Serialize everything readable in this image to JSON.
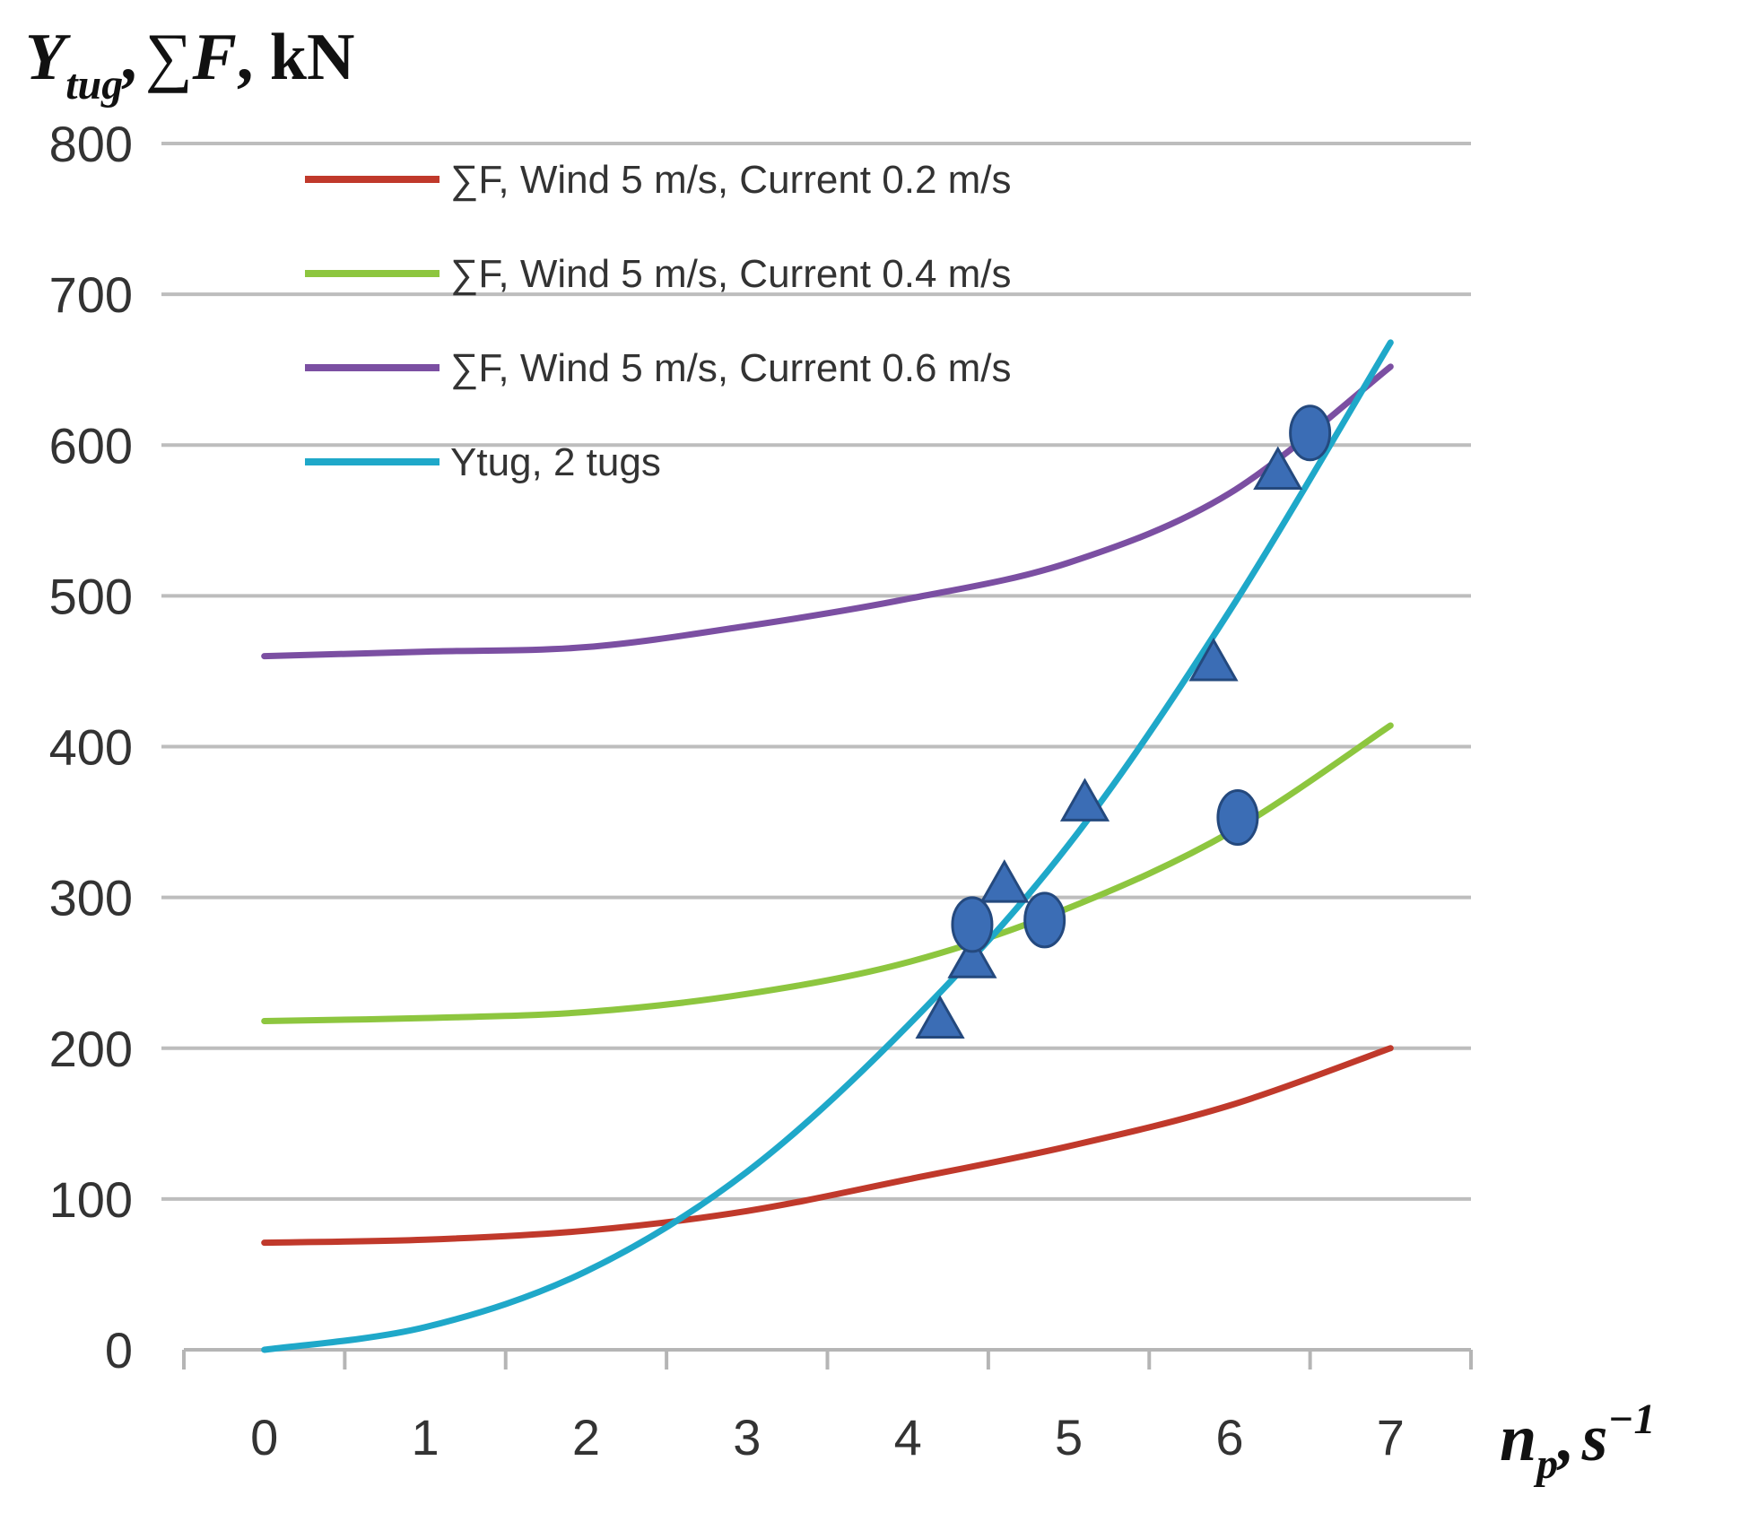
{
  "chart_data": {
    "type": "line",
    "ylabel": {
      "main": "Y",
      "sub": "tug",
      "sep": ",",
      "sum": "∑",
      "var": "F",
      "unit": ", kN"
    },
    "xlabel": {
      "main": "n",
      "sub": "p",
      "sep": ",",
      "var": "s",
      "sup": "−1"
    },
    "xlim": [
      -0.5,
      7.5
    ],
    "ylim": [
      0,
      800
    ],
    "x_ticks": [
      0,
      1,
      2,
      3,
      4,
      5,
      6,
      7
    ],
    "y_ticks": [
      0,
      100,
      200,
      300,
      400,
      500,
      600,
      700,
      800
    ],
    "grid": "horizontal",
    "legend_position": "top-left",
    "series": [
      {
        "name": "∑F, Wind 5 m/s, Current 0.2 m/s",
        "color": "#c0392b",
        "x": [
          0,
          1,
          2,
          3,
          4,
          5,
          6,
          7
        ],
        "y": [
          71,
          73,
          79,
          92,
          113,
          135,
          162,
          200
        ]
      },
      {
        "name": "∑F, Wind 5 m/s, Current 0.4 m/s",
        "color": "#8dc63f",
        "x": [
          0,
          1,
          2,
          3,
          4,
          5,
          6,
          7
        ],
        "y": [
          218,
          220,
          224,
          236,
          257,
          293,
          343,
          414
        ]
      },
      {
        "name": "∑F, Wind 5 m/s, Current 0.6 m/s",
        "color": "#7b4fa2",
        "x": [
          0,
          1,
          2,
          3,
          4,
          5,
          6,
          7
        ],
        "y": [
          460,
          463,
          466,
          480,
          498,
          522,
          568,
          652
        ]
      },
      {
        "name": "Ytug, 2 tugs",
        "color": "#1fa8c9",
        "x": [
          0,
          1,
          2,
          3,
          4,
          5,
          6,
          7
        ],
        "y": [
          0,
          15,
          52,
          118,
          215,
          335,
          490,
          668
        ]
      }
    ],
    "markers": {
      "color": "#3b6db5",
      "triangles": [
        {
          "x": 4.2,
          "y": 218
        },
        {
          "x": 4.4,
          "y": 258
        },
        {
          "x": 4.6,
          "y": 308
        },
        {
          "x": 5.1,
          "y": 362
        },
        {
          "x": 5.9,
          "y": 455
        },
        {
          "x": 6.3,
          "y": 582
        }
      ],
      "circles": [
        {
          "x": 4.4,
          "y": 282
        },
        {
          "x": 4.85,
          "y": 285
        },
        {
          "x": 6.05,
          "y": 353
        },
        {
          "x": 6.5,
          "y": 608
        }
      ]
    }
  }
}
